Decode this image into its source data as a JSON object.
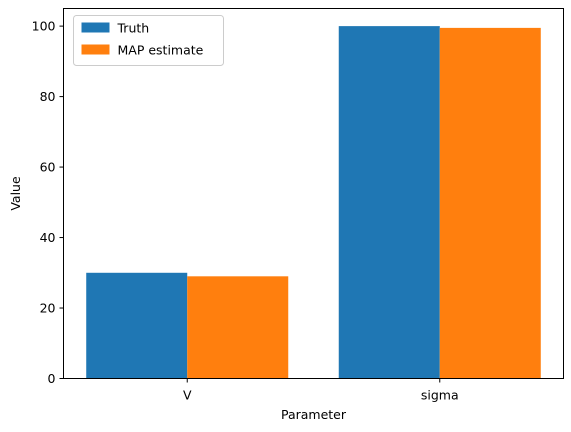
{
  "chart_data": {
    "type": "bar",
    "categories": [
      "V",
      "sigma"
    ],
    "series": [
      {
        "name": "Truth",
        "values": [
          30,
          100
        ],
        "color": "#1f77b4"
      },
      {
        "name": "MAP estimate",
        "values": [
          29,
          99.5
        ],
        "color": "#ff7f0e"
      }
    ],
    "xlabel": "Parameter",
    "ylabel": "Value",
    "ylim": [
      0,
      105
    ],
    "yticks": [
      0,
      20,
      40,
      60,
      80,
      100
    ],
    "grid": false,
    "legend_position": "top-left"
  }
}
